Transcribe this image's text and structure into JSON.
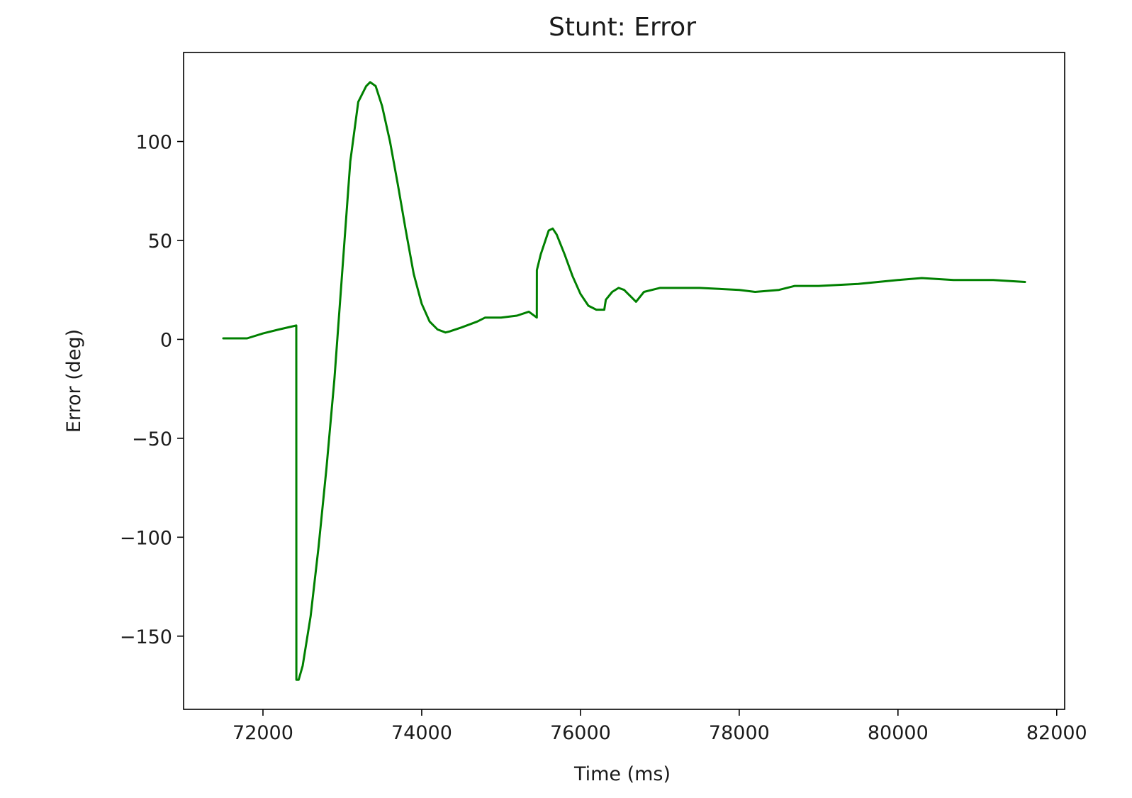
{
  "chart_data": {
    "type": "line",
    "title": "Stunt: Error",
    "xlabel": "Time (ms)",
    "ylabel": "Error (deg)",
    "xlim": [
      71000,
      82100
    ],
    "ylim": [
      -187,
      145
    ],
    "x_ticks": [
      72000,
      74000,
      76000,
      78000,
      80000,
      82000
    ],
    "x_tick_labels": [
      "72000",
      "74000",
      "76000",
      "78000",
      "80000",
      "82000"
    ],
    "y_ticks": [
      -150,
      -100,
      -50,
      0,
      50,
      100
    ],
    "y_tick_labels": [
      "−150",
      "−100",
      "−50",
      "0",
      "50",
      "100"
    ],
    "grid": false,
    "legend": "none",
    "series": [
      {
        "color": "#008000",
        "x": [
          71500,
          71800,
          72000,
          72200,
          72420,
          72421,
          72450,
          72500,
          72600,
          72700,
          72800,
          72900,
          73000,
          73100,
          73200,
          73300,
          73350,
          73420,
          73500,
          73600,
          73700,
          73800,
          73900,
          74000,
          74100,
          74200,
          74300,
          74350,
          74500,
          74700,
          74800,
          75000,
          75200,
          75350,
          75450,
          75451,
          75500,
          75600,
          75650,
          75700,
          75800,
          75900,
          76000,
          76100,
          76200,
          76300,
          76320,
          76400,
          76480,
          76550,
          76600,
          76700,
          76800,
          77000,
          77500,
          78000,
          78200,
          78500,
          78700,
          79000,
          79500,
          80000,
          80300,
          80700,
          81200,
          81600
        ],
        "y": [
          0.5,
          0.5,
          3,
          5,
          7,
          -172,
          -172,
          -165,
          -140,
          -105,
          -65,
          -20,
          35,
          90,
          120,
          128,
          130,
          128,
          118,
          100,
          78,
          55,
          33,
          18,
          9,
          5,
          3.5,
          4,
          6,
          9,
          11,
          11,
          12,
          14,
          11,
          35,
          43,
          55,
          56,
          53,
          43,
          32,
          23,
          17,
          15,
          15,
          20,
          24,
          26,
          25,
          23,
          19,
          24,
          26,
          26,
          25,
          24,
          25,
          27,
          27,
          28,
          30,
          31,
          30,
          30,
          29
        ]
      }
    ]
  }
}
